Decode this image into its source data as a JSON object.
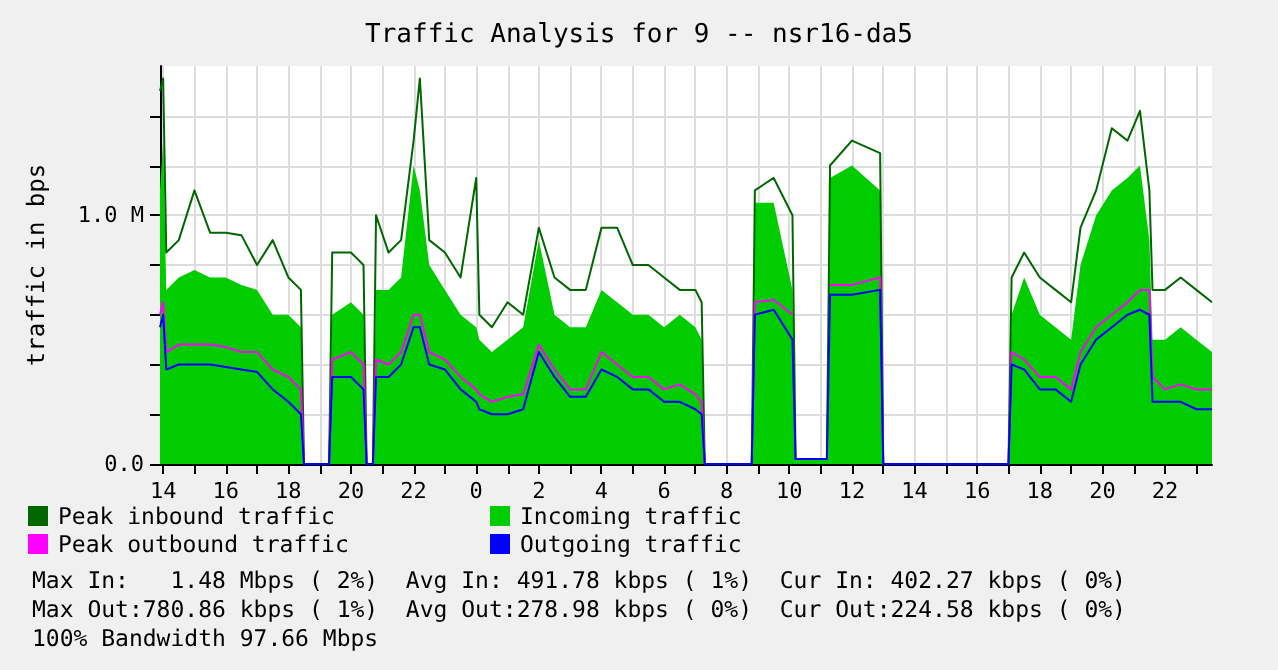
{
  "chart_data": {
    "type": "line",
    "title": "Traffic Analysis for 9 -- nsr16-da5",
    "ylabel": "traffic in bps",
    "x": [
      "--01-01T13:54",
      "--01-01T14:00",
      "--01-01T14:06",
      "--01-01T14:30",
      "--01-01T15:00",
      "--01-01T15:30",
      "--01-01T16:00",
      "--01-01T16:30",
      "--01-01T17:00",
      "--01-01T17:30",
      "--01-01T18:00",
      "--01-01T18:24",
      "--01-01T18:30",
      "--01-01T19:18",
      "--01-01T19:24",
      "--01-01T20:00",
      "--01-01T20:24",
      "--01-01T20:30",
      "--01-01T20:42",
      "--01-01T20:48",
      "--01-01T21:12",
      "--01-01T21:36",
      "--01-01T22:00",
      "--01-01T22:12",
      "--01-01T22:30",
      "--01-01T23:00",
      "--01-01T23:30",
      "--01-02T00:00",
      "--01-02T00:06",
      "--01-02T00:30",
      "--01-02T01:00",
      "--01-02T01:30",
      "--01-02T02:00",
      "--01-02T02:30",
      "--01-02T03:00",
      "--01-02T03:30",
      "--01-02T04:00",
      "--01-02T04:30",
      "--01-02T05:00",
      "--01-02T05:30",
      "--01-02T06:00",
      "--01-02T06:30",
      "--01-02T07:00",
      "--01-02T07:12",
      "--01-02T07:18",
      "--01-02T08:48",
      "--01-02T08:54",
      "--01-02T09:30",
      "--01-02T10:06",
      "--01-02T10:12",
      "--01-02T11:12",
      "--01-02T11:18",
      "--01-02T12:00",
      "--01-02T12:54",
      "--01-02T13:00",
      "--01-02T17:00",
      "--01-02T17:06",
      "--01-02T17:30",
      "--01-02T18:00",
      "--01-02T18:30",
      "--01-02T19:00",
      "--01-02T19:18",
      "--01-02T19:48",
      "--01-02T20:18",
      "--01-02T20:48",
      "--01-02T21:12",
      "--01-02T21:30",
      "--01-02T21:36",
      "--01-02T22:00",
      "--01-02T22:30",
      "--01-02T23:00",
      "--01-02T23:30"
    ],
    "series": [
      {
        "name": "Peak inbound traffic",
        "color": "#006600",
        "values": [
          1.5,
          1.55,
          0.85,
          0.9,
          1.1,
          0.93,
          0.93,
          0.92,
          0.8,
          0.9,
          0.75,
          0.7,
          0,
          0,
          0.85,
          0.85,
          0.8,
          0,
          0,
          1.0,
          0.85,
          0.9,
          1.3,
          1.55,
          0.9,
          0.85,
          0.75,
          1.15,
          0.6,
          0.55,
          0.65,
          0.6,
          0.95,
          0.75,
          0.7,
          0.7,
          0.95,
          0.95,
          0.8,
          0.8,
          0.75,
          0.7,
          0.7,
          0.65,
          0,
          0,
          1.1,
          1.15,
          1.0,
          0.02,
          0.02,
          1.2,
          1.3,
          1.25,
          0,
          0,
          0.75,
          0.85,
          0.75,
          0.7,
          0.65,
          0.95,
          1.1,
          1.35,
          1.3,
          1.42,
          1.1,
          0.7,
          0.7,
          0.75,
          0.7,
          0.65
        ]
      },
      {
        "name": "Incoming traffic",
        "color": "#00cc00",
        "type": "area",
        "values": [
          1.1,
          1.3,
          0.7,
          0.75,
          0.78,
          0.75,
          0.75,
          0.72,
          0.7,
          0.6,
          0.6,
          0.55,
          0,
          0,
          0.6,
          0.65,
          0.6,
          0,
          0,
          0.7,
          0.7,
          0.75,
          1.2,
          1.1,
          0.8,
          0.7,
          0.6,
          0.55,
          0.5,
          0.45,
          0.5,
          0.55,
          0.9,
          0.6,
          0.55,
          0.55,
          0.7,
          0.65,
          0.6,
          0.6,
          0.55,
          0.6,
          0.55,
          0.5,
          0,
          0,
          1.05,
          1.05,
          0.7,
          0.02,
          0.02,
          1.15,
          1.2,
          1.1,
          0,
          0,
          0.6,
          0.75,
          0.6,
          0.55,
          0.5,
          0.8,
          1.0,
          1.1,
          1.15,
          1.2,
          0.9,
          0.5,
          0.5,
          0.55,
          0.5,
          0.45
        ]
      },
      {
        "name": "Peak outbound traffic",
        "color": "#ff00ff",
        "values": [
          0.6,
          0.65,
          0.45,
          0.48,
          0.48,
          0.48,
          0.47,
          0.45,
          0.45,
          0.38,
          0.35,
          0.3,
          0,
          0,
          0.42,
          0.45,
          0.4,
          0,
          0,
          0.42,
          0.4,
          0.45,
          0.6,
          0.6,
          0.45,
          0.42,
          0.35,
          0.3,
          0.28,
          0.25,
          0.27,
          0.28,
          0.48,
          0.38,
          0.3,
          0.3,
          0.45,
          0.4,
          0.35,
          0.35,
          0.3,
          0.32,
          0.28,
          0.25,
          0,
          0,
          0.65,
          0.66,
          0.6,
          null,
          null,
          0.72,
          0.72,
          0.75,
          0,
          0,
          0.45,
          0.42,
          0.35,
          0.35,
          0.3,
          0.45,
          0.55,
          0.6,
          0.65,
          0.7,
          0.7,
          0.35,
          0.3,
          0.32,
          0.3,
          0.3
        ]
      },
      {
        "name": "Outgoing traffic",
        "color": "#0000ff",
        "values": [
          0.55,
          0.6,
          0.38,
          0.4,
          0.4,
          0.4,
          0.39,
          0.38,
          0.37,
          0.3,
          0.25,
          0.2,
          0,
          0,
          0.35,
          0.35,
          0.3,
          0,
          0,
          0.35,
          0.35,
          0.4,
          0.55,
          0.55,
          0.4,
          0.38,
          0.3,
          0.25,
          0.22,
          0.2,
          0.2,
          0.22,
          0.45,
          0.35,
          0.27,
          0.27,
          0.38,
          0.35,
          0.3,
          0.3,
          0.25,
          0.25,
          0.22,
          0.2,
          0,
          0,
          0.6,
          0.62,
          0.5,
          0.02,
          0.02,
          0.68,
          0.68,
          0.7,
          0,
          0,
          0.4,
          0.38,
          0.3,
          0.3,
          0.25,
          0.4,
          0.5,
          0.55,
          0.6,
          0.62,
          0.6,
          0.25,
          0.25,
          0.25,
          0.22,
          0.22
        ]
      }
    ],
    "xlim": [
      "--01-01T13:54",
      "--01-02T23:30"
    ],
    "xticks": [
      {
        "value": "--01-01T14:00",
        "label": "14"
      },
      {
        "value": "--01-01T15:00",
        "label": null
      },
      {
        "value": "--01-01T16:00",
        "label": "16"
      },
      {
        "value": "--01-01T17:00",
        "label": null
      },
      {
        "value": "--01-01T18:00",
        "label": "18"
      },
      {
        "value": "--01-01T19:00",
        "label": null
      },
      {
        "value": "--01-01T20:00",
        "label": "20"
      },
      {
        "value": "--01-01T21:00",
        "label": null
      },
      {
        "value": "--01-01T22:00",
        "label": "22"
      },
      {
        "value": "--01-01T23:00",
        "label": null
      },
      {
        "value": "--01-02T00:00",
        "label": "0"
      },
      {
        "value": "--01-02T01:00",
        "label": null
      },
      {
        "value": "--01-02T02:00",
        "label": "2"
      },
      {
        "value": "--01-02T03:00",
        "label": null
      },
      {
        "value": "--01-02T04:00",
        "label": "4"
      },
      {
        "value": "--01-02T05:00",
        "label": null
      },
      {
        "value": "--01-02T06:00",
        "label": "6"
      },
      {
        "value": "--01-02T07:00",
        "label": null
      },
      {
        "value": "--01-02T08:00",
        "label": "8"
      },
      {
        "value": "--01-02T09:00",
        "label": null
      },
      {
        "value": "--01-02T10:00",
        "label": "10"
      },
      {
        "value": "--01-02T11:00",
        "label": null
      },
      {
        "value": "--01-02T12:00",
        "label": "12"
      },
      {
        "value": "--01-02T13:00",
        "label": null
      },
      {
        "value": "--01-02T14:00",
        "label": "14"
      },
      {
        "value": "--01-02T15:00",
        "label": null
      },
      {
        "value": "--01-02T16:00",
        "label": "16"
      },
      {
        "value": "--01-02T17:00",
        "label": null
      },
      {
        "value": "--01-02T18:00",
        "label": "18"
      },
      {
        "value": "--01-02T19:00",
        "label": null
      },
      {
        "value": "--01-02T20:00",
        "label": "20"
      },
      {
        "value": "--01-02T21:00",
        "label": null
      },
      {
        "value": "--01-02T22:00",
        "label": "22"
      },
      {
        "value": "--01-02T23:00",
        "label": null
      }
    ],
    "ylim": [
      0,
      1.6
    ],
    "yticks": [
      {
        "value": 0,
        "label": "0.0"
      },
      {
        "value": 0.2,
        "label": null
      },
      {
        "value": 0.4,
        "label": null
      },
      {
        "value": 0.6,
        "label": null
      },
      {
        "value": 0.8,
        "label": null
      },
      {
        "value": 1,
        "label": "1.0 M"
      },
      {
        "value": 1.2,
        "label": null
      },
      {
        "value": 1.4,
        "label": null
      }
    ],
    "grid": true,
    "legend": "bottom",
    "marker": "none",
    "annotations": [
      "Max In:   1.48 Mbps ( 2%)  Avg In: 491.78 kbps ( 1%)  Cur In: 402.27 kbps ( 0%)",
      "Max Out:780.86 kbps ( 1%)  Avg Out:278.98 kbps ( 0%)  Cur Out:224.58 kbps ( 0%)",
      "100% Bandwidth 97.66 Mbps"
    ]
  }
}
